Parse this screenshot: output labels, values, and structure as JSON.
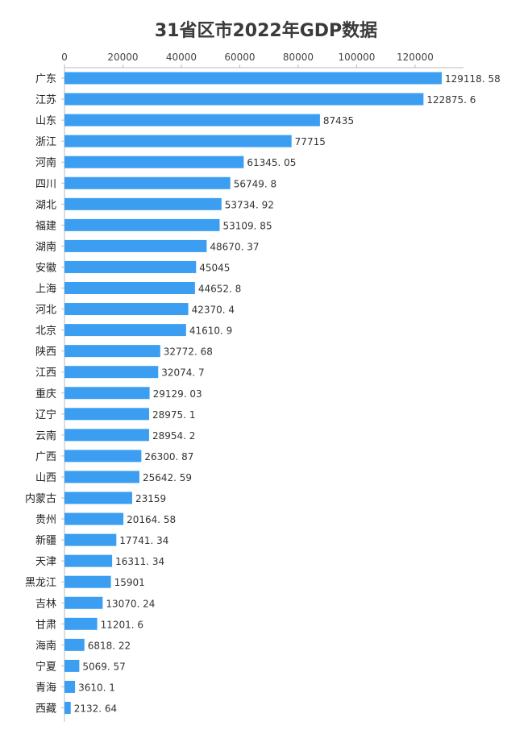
{
  "chart_data": {
    "type": "bar",
    "orientation": "horizontal",
    "title": "31省区市2022年GDP数据",
    "xlim": [
      0,
      135000
    ],
    "x_ticks": [
      "0",
      "20000",
      "40000",
      "60000",
      "80000",
      "100000",
      "120000"
    ],
    "x_tick_values": [
      0,
      20000,
      40000,
      60000,
      80000,
      100000,
      120000
    ],
    "grid": false,
    "legend": "none",
    "bar_color": "#3b9ef0",
    "categories": [
      "广东",
      "江苏",
      "山东",
      "浙江",
      "河南",
      "四川",
      "湖北",
      "福建",
      "湖南",
      "安徽",
      "上海",
      "河北",
      "北京",
      "陕西",
      "江西",
      "重庆",
      "辽宁",
      "云南",
      "广西",
      "山西",
      "内蒙古",
      "贵州",
      "新疆",
      "天津",
      "黑龙江",
      "吉林",
      "甘肃",
      "海南",
      "宁夏",
      "青海",
      "西藏"
    ],
    "values": [
      129118.58,
      122875.6,
      87435,
      77715,
      61345.05,
      56749.8,
      53734.92,
      53109.85,
      48670.37,
      45045,
      44652.8,
      42370.4,
      41610.9,
      32772.68,
      32074.7,
      29129.03,
      28975.1,
      28954.2,
      26300.87,
      25642.59,
      23159,
      20164.58,
      17741.34,
      16311.34,
      15901,
      13070.24,
      11201.6,
      6818.22,
      5069.57,
      3610.1,
      2132.64
    ],
    "value_labels": [
      "129118. 58",
      "122875. 6",
      "87435",
      "77715",
      "61345. 05",
      "56749. 8",
      "53734. 92",
      "53109. 85",
      "48670. 37",
      "45045",
      "44652. 8",
      "42370. 4",
      "41610. 9",
      "32772. 68",
      "32074. 7",
      "29129. 03",
      "28975. 1",
      "28954. 2",
      "26300. 87",
      "25642. 59",
      "23159",
      "20164. 58",
      "17741. 34",
      "16311. 34",
      "15901",
      "13070. 24",
      "11201. 6",
      "6818. 22",
      "5069. 57",
      "3610. 1",
      "2132. 64"
    ]
  }
}
